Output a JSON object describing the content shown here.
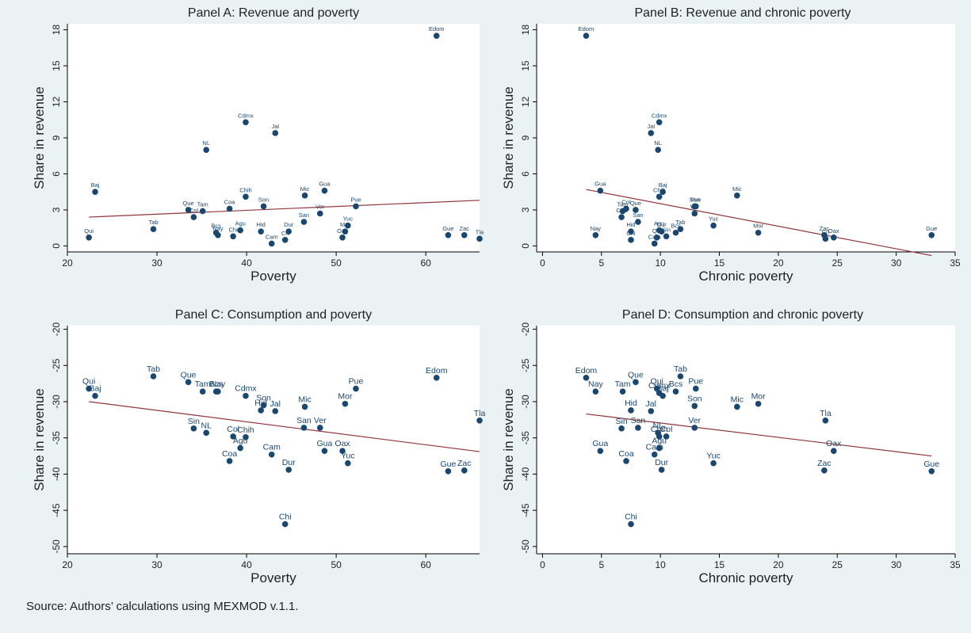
{
  "colors": {
    "background": "#eaf2f3",
    "plot_bg": "#ffffff",
    "point": "#1a476f",
    "fit_line": "#90353b",
    "text": "#222222"
  },
  "source_note": "Source: Authors’ calculations using MEXMOD v.1.1.",
  "chart_data": [
    {
      "type": "scatter",
      "title": "Panel A: Revenue and poverty",
      "xlabel": "Poverty",
      "ylabel": "Share in revenue",
      "xlim": [
        20,
        66
      ],
      "ylim": [
        -0.5,
        18.5
      ],
      "xticks": [
        20,
        30,
        40,
        50,
        60
      ],
      "yticks": [
        0,
        3,
        6,
        9,
        12,
        15,
        18
      ],
      "grid": false,
      "fit_line": [
        [
          22.4,
          2.4
        ],
        [
          66,
          3.8
        ]
      ],
      "points": [
        {
          "label": "Edom",
          "x": 61.2,
          "y": 17.5
        },
        {
          "label": "Cdmx",
          "x": 39.9,
          "y": 10.3
        },
        {
          "label": "Jal",
          "x": 43.2,
          "y": 9.4
        },
        {
          "label": "NL",
          "x": 35.5,
          "y": 8.0
        },
        {
          "label": "Baj",
          "x": 23.1,
          "y": 4.5
        },
        {
          "label": "Chih",
          "x": 39.9,
          "y": 4.1
        },
        {
          "label": "Mic",
          "x": 46.5,
          "y": 4.2
        },
        {
          "label": "Gua",
          "x": 48.7,
          "y": 4.6
        },
        {
          "label": "Que",
          "x": 33.5,
          "y": 3.0
        },
        {
          "label": "Tam",
          "x": 35.1,
          "y": 2.9
        },
        {
          "label": "Col",
          "x": 34.1,
          "y": 2.4
        },
        {
          "label": "Coa",
          "x": 38.1,
          "y": 3.1
        },
        {
          "label": "Son",
          "x": 41.9,
          "y": 3.3
        },
        {
          "label": "Pue",
          "x": 52.2,
          "y": 3.3
        },
        {
          "label": "Ver",
          "x": 48.2,
          "y": 2.7
        },
        {
          "label": "San",
          "x": 46.4,
          "y": 2.0
        },
        {
          "label": "Yuc",
          "x": 51.3,
          "y": 1.7
        },
        {
          "label": "Tab",
          "x": 29.6,
          "y": 1.4
        },
        {
          "label": "Qui",
          "x": 22.4,
          "y": 0.7
        },
        {
          "label": "Bcs",
          "x": 36.6,
          "y": 1.1
        },
        {
          "label": "Nay",
          "x": 36.8,
          "y": 0.9
        },
        {
          "label": "Agu",
          "x": 39.3,
          "y": 1.3
        },
        {
          "label": "Chi",
          "x": 38.5,
          "y": 0.8
        },
        {
          "label": "Hid",
          "x": 41.6,
          "y": 1.2
        },
        {
          "label": "Dur",
          "x": 44.7,
          "y": 1.2
        },
        {
          "label": "Cam",
          "x": 42.8,
          "y": 0.2
        },
        {
          "label": "Cri",
          "x": 44.3,
          "y": 0.5
        },
        {
          "label": "Mor",
          "x": 51.0,
          "y": 1.2
        },
        {
          "label": "Oax",
          "x": 50.7,
          "y": 0.7
        },
        {
          "label": "Gue",
          "x": 62.5,
          "y": 0.9
        },
        {
          "label": "Zac",
          "x": 64.3,
          "y": 0.9
        },
        {
          "label": "Tla",
          "x": 66.0,
          "y": 0.6
        }
      ]
    },
    {
      "type": "scatter",
      "title": "Panel B: Revenue and chronic poverty",
      "xlabel": "Chronic poverty",
      "ylabel": "Share in revenue",
      "xlim": [
        -0.5,
        35
      ],
      "ylim": [
        -0.5,
        18.5
      ],
      "xticks": [
        0,
        5,
        10,
        15,
        20,
        25,
        30,
        35
      ],
      "yticks": [
        0,
        3,
        6,
        9,
        12,
        15,
        18
      ],
      "grid": false,
      "fit_line": [
        [
          3.7,
          4.7
        ],
        [
          33.0,
          -0.8
        ]
      ],
      "points": [
        {
          "label": "Edom",
          "x": 3.7,
          "y": 17.5
        },
        {
          "label": "Cdmx",
          "x": 9.9,
          "y": 10.3
        },
        {
          "label": "Jal",
          "x": 9.2,
          "y": 9.4
        },
        {
          "label": "NL",
          "x": 9.8,
          "y": 8.0
        },
        {
          "label": "Gua",
          "x": 4.9,
          "y": 4.6
        },
        {
          "label": "Baj",
          "x": 10.2,
          "y": 4.5
        },
        {
          "label": "Chih",
          "x": 9.9,
          "y": 4.1
        },
        {
          "label": "Mic",
          "x": 16.5,
          "y": 4.2
        },
        {
          "label": "Col",
          "x": 7.1,
          "y": 3.1
        },
        {
          "label": "Que",
          "x": 7.9,
          "y": 3.0
        },
        {
          "label": "Tam",
          "x": 6.8,
          "y": 2.9
        },
        {
          "label": "San",
          "x": 8.1,
          "y": 2.0
        },
        {
          "label": "Son",
          "x": 12.9,
          "y": 3.3
        },
        {
          "label": "Pue",
          "x": 13.0,
          "y": 3.3
        },
        {
          "label": "Ver",
          "x": 12.9,
          "y": 2.7
        },
        {
          "label": "Coa",
          "x": 6.7,
          "y": 2.4
        },
        {
          "label": "Yuc",
          "x": 14.5,
          "y": 1.7
        },
        {
          "label": "Hid",
          "x": 7.5,
          "y": 1.2
        },
        {
          "label": "Bcs",
          "x": 11.3,
          "y": 1.1
        },
        {
          "label": "Tab",
          "x": 11.7,
          "y": 1.4
        },
        {
          "label": "Chi",
          "x": 7.5,
          "y": 0.5
        },
        {
          "label": "Nay",
          "x": 4.5,
          "y": 0.9
        },
        {
          "label": "Agu",
          "x": 9.9,
          "y": 1.3
        },
        {
          "label": "Dur",
          "x": 10.1,
          "y": 1.2
        },
        {
          "label": "Qui",
          "x": 9.7,
          "y": 0.7
        },
        {
          "label": "Sin",
          "x": 10.5,
          "y": 0.8
        },
        {
          "label": "Cam",
          "x": 9.5,
          "y": 0.2
        },
        {
          "label": "Mor",
          "x": 18.3,
          "y": 1.1
        },
        {
          "label": "Zac",
          "x": 23.9,
          "y": 0.9
        },
        {
          "label": "Cri",
          "x": 24.0,
          "y": 0.6
        },
        {
          "label": "Oax",
          "x": 24.7,
          "y": 0.7
        },
        {
          "label": "Gue",
          "x": 33.0,
          "y": 0.9
        }
      ]
    },
    {
      "type": "scatter",
      "title": "Panel C: Consumption and poverty",
      "xlabel": "Poverty",
      "ylabel": "Share in revenue",
      "xlim": [
        20,
        66
      ],
      "ylim": [
        -51,
        -19.5
      ],
      "xticks": [
        20,
        30,
        40,
        50,
        60
      ],
      "yticks": [
        -20,
        -25,
        -30,
        -35,
        -40,
        -45,
        -50
      ],
      "grid": false,
      "fit_line": [
        [
          22.4,
          -30.0
        ],
        [
          66,
          -36.9
        ]
      ],
      "points": [
        {
          "label": "Tab",
          "x": 29.6,
          "y": -26.5
        },
        {
          "label": "Que",
          "x": 33.5,
          "y": -27.3
        },
        {
          "label": "Qui",
          "x": 22.4,
          "y": -28.2
        },
        {
          "label": "Baj",
          "x": 23.1,
          "y": -29.2
        },
        {
          "label": "Tam",
          "x": 35.1,
          "y": -28.6
        },
        {
          "label": "Bcs",
          "x": 36.6,
          "y": -28.6
        },
        {
          "label": "Nay",
          "x": 36.8,
          "y": -28.6
        },
        {
          "label": "Cdmx",
          "x": 39.9,
          "y": -29.2
        },
        {
          "label": "Edom",
          "x": 61.2,
          "y": -26.7
        },
        {
          "label": "Pue",
          "x": 52.2,
          "y": -28.2
        },
        {
          "label": "Mor",
          "x": 51.0,
          "y": -30.3
        },
        {
          "label": "Mic",
          "x": 46.5,
          "y": -30.7
        },
        {
          "label": "Son",
          "x": 41.9,
          "y": -30.5
        },
        {
          "label": "Hid",
          "x": 41.6,
          "y": -31.2
        },
        {
          "label": "Jal",
          "x": 43.2,
          "y": -31.3
        },
        {
          "label": "Sin",
          "x": 34.1,
          "y": -33.7
        },
        {
          "label": "NL",
          "x": 35.5,
          "y": -34.3
        },
        {
          "label": "San",
          "x": 46.4,
          "y": -33.6
        },
        {
          "label": "Ver",
          "x": 48.2,
          "y": -33.6
        },
        {
          "label": "Tla",
          "x": 66.0,
          "y": -32.6
        },
        {
          "label": "Col",
          "x": 38.5,
          "y": -34.8
        },
        {
          "label": "Chih",
          "x": 39.9,
          "y": -34.9
        },
        {
          "label": "Agu",
          "x": 39.3,
          "y": -36.4
        },
        {
          "label": "Coa",
          "x": 38.1,
          "y": -38.2
        },
        {
          "label": "Cam",
          "x": 42.8,
          "y": -37.3
        },
        {
          "label": "Gua",
          "x": 48.7,
          "y": -36.8
        },
        {
          "label": "Oax",
          "x": 50.7,
          "y": -36.8
        },
        {
          "label": "Yuc",
          "x": 51.3,
          "y": -38.5
        },
        {
          "label": "Dur",
          "x": 44.7,
          "y": -39.4
        },
        {
          "label": "Gue",
          "x": 62.5,
          "y": -39.6
        },
        {
          "label": "Zac",
          "x": 64.3,
          "y": -39.5
        },
        {
          "label": "Chi",
          "x": 44.3,
          "y": -46.9
        }
      ]
    },
    {
      "type": "scatter",
      "title": "Panel D: Consumption and chronic poverty",
      "xlabel": "Chronic poverty",
      "ylabel": "Share in revenue",
      "xlim": [
        -0.5,
        35
      ],
      "ylim": [
        -51,
        -19.5
      ],
      "xticks": [
        0,
        5,
        10,
        15,
        20,
        25,
        30,
        35
      ],
      "yticks": [
        -20,
        -25,
        -30,
        -35,
        -40,
        -45,
        -50
      ],
      "grid": false,
      "fit_line": [
        [
          3.7,
          -31.7
        ],
        [
          33.0,
          -37.5
        ]
      ],
      "points": [
        {
          "label": "Edom",
          "x": 3.7,
          "y": -26.7
        },
        {
          "label": "Nay",
          "x": 4.5,
          "y": -28.6
        },
        {
          "label": "Que",
          "x": 7.9,
          "y": -27.3
        },
        {
          "label": "Tab",
          "x": 11.7,
          "y": -26.5
        },
        {
          "label": "Tam",
          "x": 6.8,
          "y": -28.6
        },
        {
          "label": "Qui",
          "x": 9.7,
          "y": -28.2
        },
        {
          "label": "Cdmx",
          "x": 9.9,
          "y": -28.8
        },
        {
          "label": "Baj",
          "x": 10.2,
          "y": -29.2
        },
        {
          "label": "Bcs",
          "x": 11.3,
          "y": -28.6
        },
        {
          "label": "Pue",
          "x": 13.0,
          "y": -28.2
        },
        {
          "label": "Son",
          "x": 12.9,
          "y": -30.6
        },
        {
          "label": "Hid",
          "x": 7.5,
          "y": -31.2
        },
        {
          "label": "Jal",
          "x": 9.2,
          "y": -31.3
        },
        {
          "label": "Mic",
          "x": 16.5,
          "y": -30.7
        },
        {
          "label": "Mor",
          "x": 18.3,
          "y": -30.3
        },
        {
          "label": "Sin",
          "x": 6.7,
          "y": -33.7
        },
        {
          "label": "San",
          "x": 8.1,
          "y": -33.6
        },
        {
          "label": "NL",
          "x": 9.8,
          "y": -34.3
        },
        {
          "label": "Col",
          "x": 10.5,
          "y": -34.8
        },
        {
          "label": "Chih",
          "x": 9.9,
          "y": -34.8
        },
        {
          "label": "Ver",
          "x": 12.9,
          "y": -33.6
        },
        {
          "label": "Tla",
          "x": 24.0,
          "y": -32.6
        },
        {
          "label": "Agu",
          "x": 9.9,
          "y": -36.4
        },
        {
          "label": "Cam",
          "x": 9.5,
          "y": -37.3
        },
        {
          "label": "Gua",
          "x": 4.9,
          "y": -36.8
        },
        {
          "label": "Coa",
          "x": 7.1,
          "y": -38.2
        },
        {
          "label": "Dur",
          "x": 10.1,
          "y": -39.4
        },
        {
          "label": "Yuc",
          "x": 14.5,
          "y": -38.5
        },
        {
          "label": "Oax",
          "x": 24.7,
          "y": -36.8
        },
        {
          "label": "Zac",
          "x": 23.9,
          "y": -39.5
        },
        {
          "label": "Gue",
          "x": 33.0,
          "y": -39.6
        },
        {
          "label": "Chi",
          "x": 7.5,
          "y": -46.9
        }
      ]
    }
  ]
}
